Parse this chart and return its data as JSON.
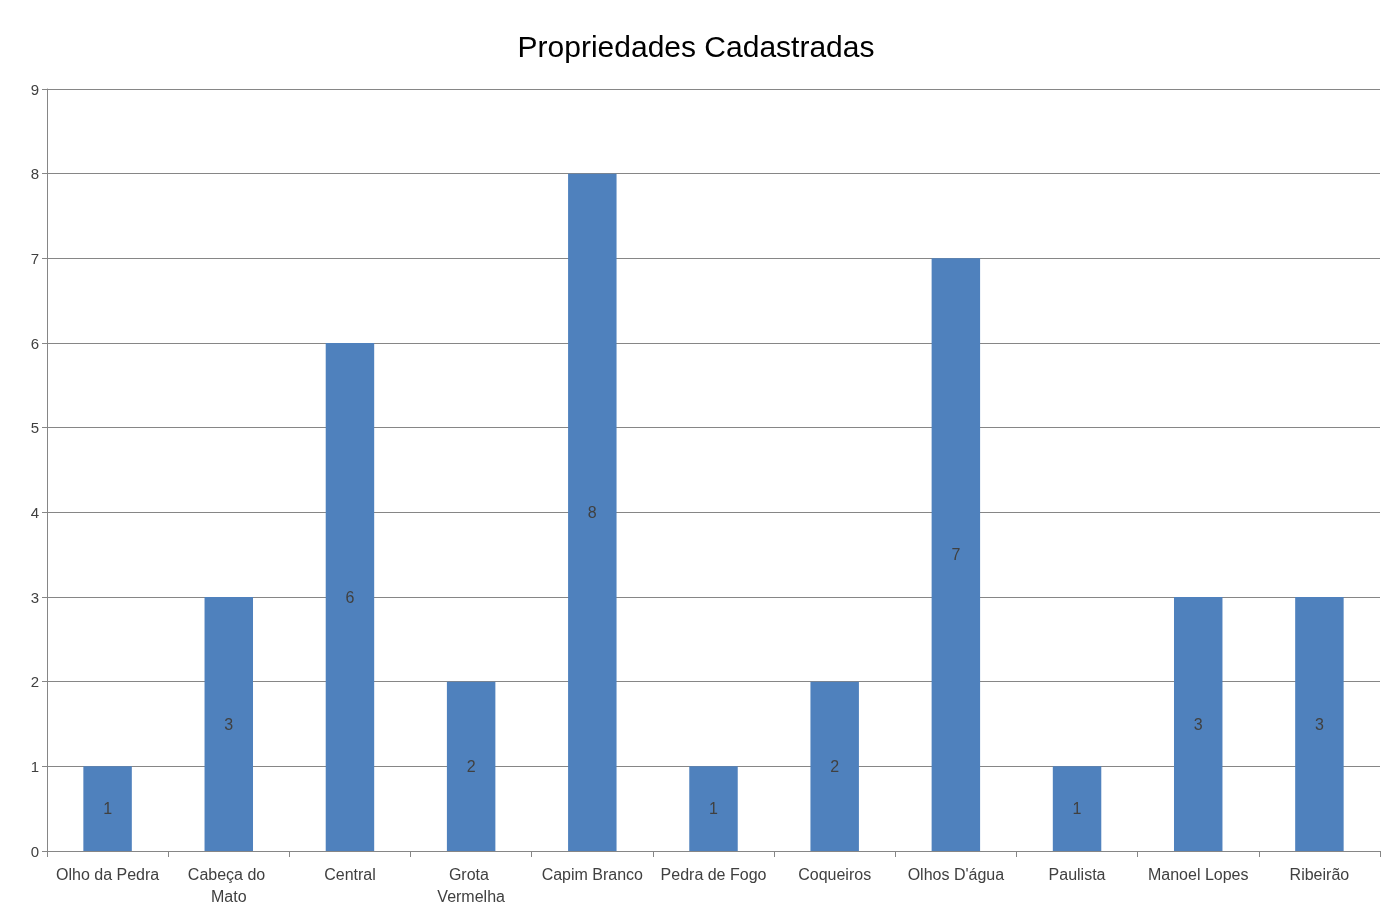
{
  "chart_data": {
    "type": "bar",
    "title": "Propriedades Cadastradas",
    "categories": [
      "Olho da Pedra",
      "Cabeça do Mato",
      "Central",
      "Grota Vermelha",
      "Capim Branco",
      "Pedra de Fogo",
      "Coqueiros",
      "Olhos D'água",
      "Paulista",
      "Manoel Lopes",
      "Ribeirão"
    ],
    "values": [
      1,
      3,
      6,
      2,
      8,
      1,
      2,
      7,
      1,
      3,
      3
    ],
    "color": "#4f81bd",
    "ylim": [
      0,
      9
    ],
    "yticks": [
      0,
      1,
      2,
      3,
      4,
      5,
      6,
      7,
      8,
      9
    ],
    "grid": "y",
    "data_labels": true
  }
}
